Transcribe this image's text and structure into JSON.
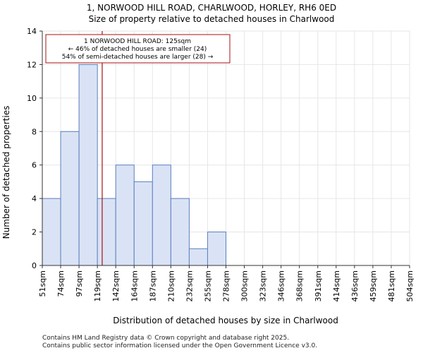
{
  "chart_data": {
    "type": "bar",
    "title_line1": "1, NORWOOD HILL ROAD, CHARLWOOD, HORLEY, RH6 0ED",
    "title_line2": "Size of property relative to detached houses in Charlwood",
    "xlabel": "Distribution of detached houses by size in Charlwood",
    "ylabel": "Number of detached properties",
    "bin_edges": [
      51,
      74,
      97,
      119,
      142,
      164,
      187,
      210,
      232,
      255,
      278,
      300,
      323,
      346,
      368,
      391,
      414,
      436,
      459,
      481,
      504
    ],
    "x_tick_labels": [
      "51sqm",
      "74sqm",
      "97sqm",
      "119sqm",
      "142sqm",
      "164sqm",
      "187sqm",
      "210sqm",
      "232sqm",
      "255sqm",
      "278sqm",
      "300sqm",
      "323sqm",
      "346sqm",
      "368sqm",
      "391sqm",
      "414sqm",
      "436sqm",
      "459sqm",
      "481sqm",
      "504sqm"
    ],
    "values": [
      4,
      8,
      12,
      4,
      6,
      5,
      6,
      4,
      1,
      2,
      0,
      0,
      0,
      0,
      0,
      0,
      0,
      0,
      0,
      0
    ],
    "ylim": [
      0,
      14
    ],
    "y_ticks": [
      0,
      2,
      4,
      6,
      8,
      10,
      12,
      14
    ],
    "marker_value": 125,
    "bar_color": "#dae3f5",
    "bar_edge_color": "#5b7fbe",
    "marker_color": "#aa1111",
    "annotation": {
      "line1": "1 NORWOOD HILL ROAD: 125sqm",
      "line2": "← 46% of detached houses are smaller (24)",
      "line3": "54% of semi-detached houses are larger (28) →"
    }
  },
  "footer": {
    "line1": "Contains HM Land Registry data © Crown copyright and database right 2025.",
    "line2": "Contains public sector information licensed under the Open Government Licence v3.0."
  }
}
